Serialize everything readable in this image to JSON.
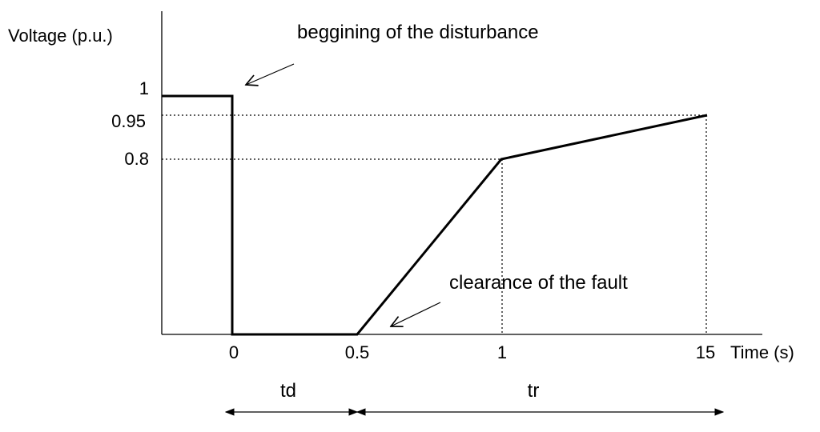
{
  "chart_data": {
    "type": "line",
    "ylabel": "Voltage (p.u.)",
    "xlabel": "Time (s)",
    "x_ticks": [
      "0",
      "0.5",
      "1",
      "15"
    ],
    "y_ticks": [
      "1",
      "0.95",
      "0.8"
    ],
    "series": [
      {
        "points": [
          {
            "x": "before 0",
            "y": 1
          },
          {
            "x": "0",
            "y": 1
          },
          {
            "x": "0",
            "y": 0
          },
          {
            "x": "0.5",
            "y": 0
          },
          {
            "x": "1",
            "y": 0.8
          },
          {
            "x": "15",
            "y": 0.95
          }
        ]
      }
    ],
    "annotations": [
      {
        "text": "beggining of the disturbance",
        "target": {
          "x": "0",
          "y": 1
        }
      },
      {
        "text": "clearance of the fault",
        "target": {
          "x": "0.5",
          "y": 0
        }
      }
    ],
    "intervals": [
      {
        "label": "td",
        "from": "0",
        "to": "0.5"
      },
      {
        "label": "tr",
        "from": "0.5",
        "to": "15"
      }
    ],
    "reference_lines": [
      {
        "type": "horizontal",
        "y": 0.95,
        "style": "dotted"
      },
      {
        "type": "horizontal",
        "y": 0.8,
        "style": "dotted"
      },
      {
        "type": "vertical",
        "x": "1",
        "style": "dotted"
      },
      {
        "type": "vertical",
        "x": "15",
        "style": "dotted"
      }
    ],
    "colors": {
      "line": "#000000",
      "background": "#ffffff"
    }
  }
}
